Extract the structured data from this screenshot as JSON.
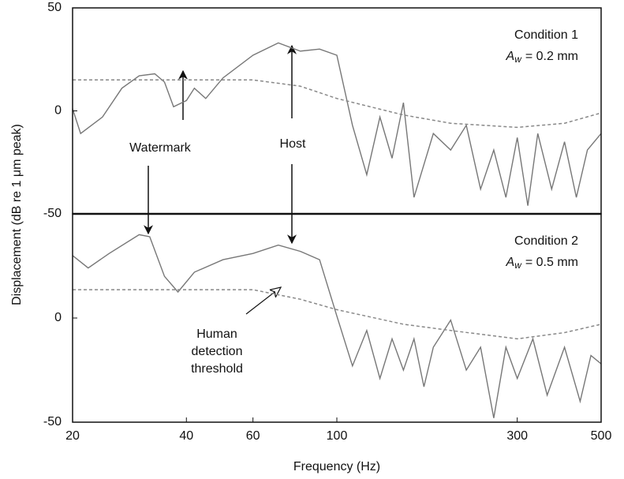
{
  "chart_data": [
    {
      "type": "line",
      "xscale": "log",
      "xlim": [
        20,
        500
      ],
      "ylim": [
        -50,
        50
      ],
      "yticks": [
        -50,
        0,
        50
      ],
      "y_label": "Displacement (dB re 1 μm peak)",
      "condition": "Condition 1",
      "amplitude": {
        "symbol": "A",
        "subscript": "w",
        "text": "= 0.2 mm"
      },
      "annotations": [
        "Watermark",
        "Host"
      ],
      "series": [
        {
          "color": "#777777",
          "dash": false,
          "x": [
            20,
            21,
            24,
            27,
            30,
            33,
            35,
            37,
            40,
            42,
            45,
            50,
            60,
            70,
            80,
            90,
            100,
            110,
            120,
            130,
            140,
            150,
            160,
            180,
            200,
            220,
            240,
            260,
            280,
            300,
            320,
            340,
            370,
            400,
            430,
            460,
            500
          ],
          "values": [
            1,
            -11,
            -3,
            11,
            17,
            18,
            14,
            2,
            5,
            11,
            6,
            16,
            27,
            33,
            29,
            30,
            27,
            -7,
            -31,
            -3,
            -23,
            4,
            -42,
            -11,
            -19,
            -7,
            -38,
            -19,
            -42,
            -13,
            -46,
            -11,
            -38,
            -15,
            -42,
            -19,
            -11
          ]
        },
        {
          "color": "#888888",
          "dash": true,
          "x": [
            20,
            60,
            80,
            100,
            150,
            200,
            300,
            400,
            500
          ],
          "values": [
            15,
            15,
            12,
            6,
            -2,
            -6,
            -8,
            -6,
            -1
          ]
        }
      ]
    },
    {
      "type": "line",
      "xscale": "log",
      "xlim": [
        20,
        500
      ],
      "ylim": [
        -50,
        50
      ],
      "yticks": [
        -50,
        0
      ],
      "xticks": [
        20,
        40,
        60,
        100,
        300,
        500
      ],
      "x_label": "Frequency (Hz)",
      "condition": "Condition 2",
      "amplitude": {
        "symbol": "A",
        "subscript": "w",
        "text": "= 0.5 mm"
      },
      "annotations": [
        [
          "Human",
          "detection",
          "threshold"
        ]
      ],
      "series": [
        {
          "color": "#777777",
          "dash": false,
          "x": [
            20,
            22,
            25,
            30,
            32,
            35,
            38,
            42,
            50,
            60,
            70,
            80,
            90,
            100,
            110,
            120,
            130,
            140,
            150,
            160,
            170,
            180,
            200,
            220,
            240,
            260,
            280,
            300,
            330,
            360,
            400,
            440,
            470,
            500
          ],
          "values": [
            30,
            24,
            31,
            40,
            39,
            20,
            12.5,
            22,
            28,
            31,
            35,
            32,
            28,
            1,
            -23,
            -6,
            -29,
            -10,
            -25,
            -10,
            -33,
            -14,
            -1,
            -25,
            -14,
            -48,
            -14,
            -29,
            -10,
            -37,
            -14,
            -40,
            -18,
            -22
          ]
        },
        {
          "color": "#888888",
          "dash": true,
          "x": [
            20,
            60,
            80,
            100,
            150,
            200,
            300,
            400,
            500
          ],
          "values": [
            13.6,
            13.6,
            9,
            4,
            -3,
            -6,
            -10,
            -7,
            -3
          ]
        }
      ]
    }
  ]
}
